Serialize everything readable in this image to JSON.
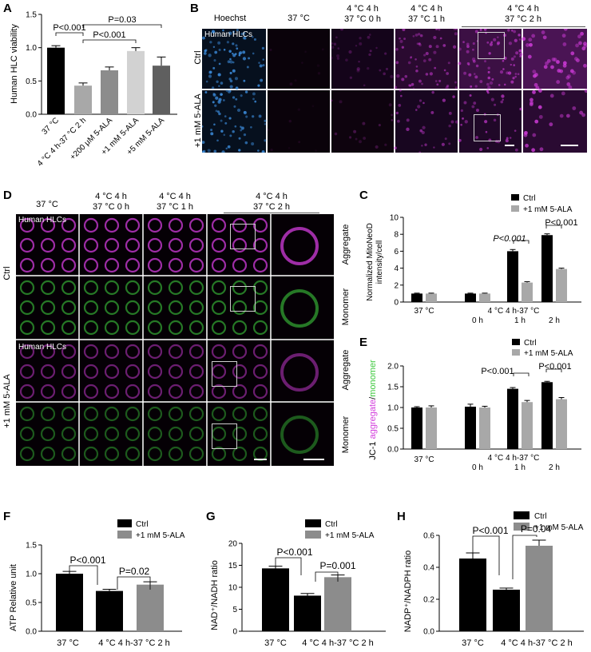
{
  "letters": {
    "A": "A",
    "B": "B",
    "C": "C",
    "D": "D",
    "E": "E",
    "F": "F",
    "G": "G",
    "H": "H"
  },
  "colors": {
    "black": "#000000",
    "dark_gray": "#5f5f5f",
    "mid_gray": "#8c8c8c",
    "light_gray": "#a8a8a8",
    "pale_gray": "#d2d2d2",
    "magenta": "#d23cdc",
    "green": "#3cc83c",
    "hoechst": "#3c8cdc"
  },
  "panelA": {
    "ylabel": "Human HLC viability",
    "yticks": [
      "0.0",
      "0.5",
      "1.0",
      "1.5"
    ],
    "categories": [
      "37 °C",
      "4 °C 4 h-37 °C 2 h",
      "+200 μM 5-ALA",
      "+1 mM 5-ALA",
      "+5 mM 5-ALA"
    ],
    "pvals": [
      "P<0.001",
      "P<0.001",
      "P=0.03"
    ]
  },
  "panelB": {
    "headers": [
      "Hoechst",
      "37 °C",
      "4 °C 4 h",
      "37 °C 0 h",
      "4 °C 4 h",
      "37 °C 1 h",
      "4 °C 4 h",
      "37 °C 2 h"
    ],
    "cell_label": "Human HLCs",
    "rows": [
      "Ctrl",
      "+1 mM 5-ALA"
    ]
  },
  "panelC": {
    "ylabel1": "Normalized MitoNeoD",
    "ylabel2": "intensity/cell",
    "yticks": [
      "0",
      "2",
      "4",
      "6",
      "8",
      "10"
    ],
    "legend": [
      "Ctrl",
      "+1 mM 5-ALA"
    ],
    "xlabels": [
      "37 °C",
      "0 h",
      "1 h",
      "2 h"
    ],
    "group_label": "4 °C 4 h-37 °C",
    "pvals": [
      "P<0.001",
      "P<0.001"
    ]
  },
  "panelD": {
    "headers": [
      "37 °C",
      "4 °C 4 h",
      "37 °C 0 h",
      "4 °C 4 h",
      "37 °C 1 h",
      "4 °C 4 h",
      "37 °C 2 h"
    ],
    "cell_label": "Human HLCs",
    "side_labels": [
      "Aggregate",
      "Monomer",
      "Aggregate",
      "Monomer"
    ],
    "rows": [
      "Ctrl",
      "+1 mM 5-ALA"
    ]
  },
  "panelE": {
    "ylabel_prefix": "JC-1 ",
    "ylabel_agg": "aggregate",
    "ylabel_slash": "/",
    "ylabel_mono": "monomer",
    "yticks": [
      "0.0",
      "0.5",
      "1.0",
      "1.5",
      "2.0"
    ],
    "legend": [
      "Ctrl",
      "+1 mM 5-ALA"
    ],
    "xlabels": [
      "37 °C",
      "0 h",
      "1 h",
      "2 h"
    ],
    "group_label": "4 °C 4 h-37 °C",
    "pvals": [
      "P<0.001",
      "P<0.001"
    ]
  },
  "panelF": {
    "ylabel": "ATP Relative unit",
    "yticks": [
      "0.0",
      "0.5",
      "1.0",
      "1.5"
    ],
    "legend": [
      "Ctrl",
      "+1 mM 5-ALA"
    ],
    "xlabels": [
      "37 °C",
      "4 °C 4 h-37 °C 2 h"
    ],
    "pvals": [
      "P<0.001",
      "P=0.02"
    ]
  },
  "panelG": {
    "ylabel": "NAD⁺/NADH ratio",
    "yticks": [
      "0",
      "5",
      "10",
      "15",
      "20"
    ],
    "legend": [
      "Ctrl",
      "+1 mM 5-ALA"
    ],
    "xlabels": [
      "37 °C",
      "4 °C 4 h-37 °C 2 h"
    ],
    "pvals": [
      "P<0.001",
      "P=0.001"
    ]
  },
  "panelH": {
    "ylabel": "NADP⁺/NADPH ratio",
    "yticks": [
      "0.0",
      "0.2",
      "0.4",
      "0.6"
    ],
    "legend": [
      "Ctrl",
      "+1 mM 5-ALA"
    ],
    "xlabels": [
      "37 °C",
      "4 °C 4 h-37 °C 2 h"
    ],
    "pvals": [
      "P<0.001",
      "P=0.04"
    ]
  },
  "chart_data": [
    {
      "type": "bar",
      "panel": "A",
      "categories": [
        "37 °C",
        "4 °C 4 h-37 °C 2 h",
        "+200 μM 5-ALA",
        "+1 mM 5-ALA",
        "+5 mM 5-ALA"
      ],
      "values": [
        1.0,
        0.43,
        0.66,
        0.95,
        0.73
      ],
      "errors": [
        0.03,
        0.04,
        0.05,
        0.05,
        0.13
      ],
      "ylim": [
        0,
        1.5
      ]
    },
    {
      "type": "bar",
      "panel": "C",
      "categories": [
        "37 °C",
        "0 h",
        "1 h",
        "2 h"
      ],
      "series": [
        {
          "name": "Ctrl",
          "values": [
            1.0,
            1.0,
            6.0,
            7.9
          ],
          "errors": [
            0.05,
            0.05,
            0.2,
            0.15
          ]
        },
        {
          "name": "+1 mM 5-ALA",
          "values": [
            1.0,
            1.0,
            2.3,
            3.9
          ],
          "errors": [
            0.05,
            0.05,
            0.1,
            0.1
          ]
        }
      ],
      "ylim": [
        0,
        10
      ]
    },
    {
      "type": "bar",
      "panel": "E",
      "categories": [
        "37 °C",
        "0 h",
        "1 h",
        "2 h"
      ],
      "series": [
        {
          "name": "Ctrl",
          "values": [
            1.0,
            1.02,
            1.45,
            1.61
          ],
          "errors": [
            0.02,
            0.06,
            0.03,
            0.02
          ]
        },
        {
          "name": "+1 mM 5-ALA",
          "values": [
            1.0,
            1.0,
            1.13,
            1.2
          ],
          "errors": [
            0.04,
            0.03,
            0.04,
            0.04
          ]
        }
      ],
      "ylim": [
        0,
        2.0
      ]
    },
    {
      "type": "bar",
      "panel": "F",
      "categories": [
        "37 °C",
        "4 °C 4 h-37 °C 2 h"
      ],
      "series": [
        {
          "name": "Ctrl",
          "values": [
            1.0,
            0.7
          ],
          "errors": [
            0.04,
            0.03
          ]
        },
        {
          "name": "+1 mM 5-ALA",
          "values": [
            null,
            0.81
          ],
          "errors": [
            null,
            0.05
          ]
        }
      ],
      "ylim": [
        0,
        1.5
      ]
    },
    {
      "type": "bar",
      "panel": "G",
      "categories": [
        "37 °C",
        "4 °C 4 h-37 °C 2 h"
      ],
      "series": [
        {
          "name": "Ctrl",
          "values": [
            14.3,
            8.1
          ],
          "errors": [
            0.5,
            0.5
          ]
        },
        {
          "name": "+1 mM 5-ALA",
          "values": [
            null,
            12.3
          ],
          "errors": [
            null,
            0.5
          ]
        }
      ],
      "ylim": [
        0,
        20
      ]
    },
    {
      "type": "bar",
      "panel": "H",
      "categories": [
        "37 °C",
        "4 °C 4 h-37 °C 2 h"
      ],
      "series": [
        {
          "name": "Ctrl",
          "values": [
            0.455,
            0.26
          ],
          "errors": [
            0.035,
            0.01
          ]
        },
        {
          "name": "+1 mM 5-ALA",
          "values": [
            null,
            0.535
          ],
          "errors": [
            null,
            0.035
          ]
        }
      ],
      "ylim": [
        0,
        0.6
      ]
    }
  ]
}
